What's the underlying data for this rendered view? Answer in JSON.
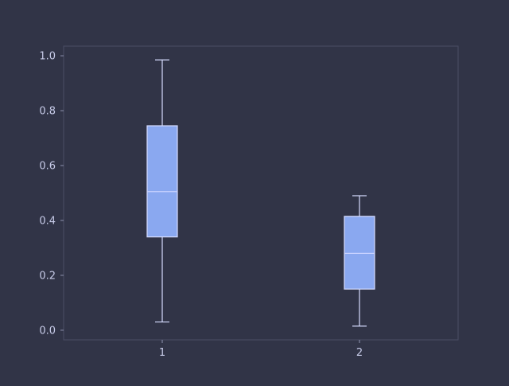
{
  "chart_data": {
    "type": "box",
    "title": "",
    "xlabel": "",
    "ylabel": "",
    "categories": [
      "1",
      "2"
    ],
    "ylim": [
      -0.035,
      1.035
    ],
    "yticks": [
      0.0,
      0.2,
      0.4,
      0.6,
      0.8,
      1.0
    ],
    "ytick_labels": [
      "0.0",
      "0.2",
      "0.4",
      "0.6",
      "0.8",
      "1.0"
    ],
    "grid": false,
    "boxes": [
      {
        "category": "1",
        "whisker_low": 0.03,
        "q1": 0.34,
        "median": 0.505,
        "q3": 0.745,
        "whisker_high": 0.985
      },
      {
        "category": "2",
        "whisker_low": 0.015,
        "q1": 0.15,
        "median": 0.28,
        "q3": 0.415,
        "whisker_high": 0.49
      }
    ],
    "colors": {
      "background": "#313447",
      "plot_border": "#4a4e66",
      "box_fill": "#8aa8f0",
      "box_edge": "#d6dcff",
      "whisker": "#d6dcff",
      "median": "#c8d2ff",
      "tick_text": "#c7cbe8",
      "tick_line": "#8f93b0"
    }
  }
}
